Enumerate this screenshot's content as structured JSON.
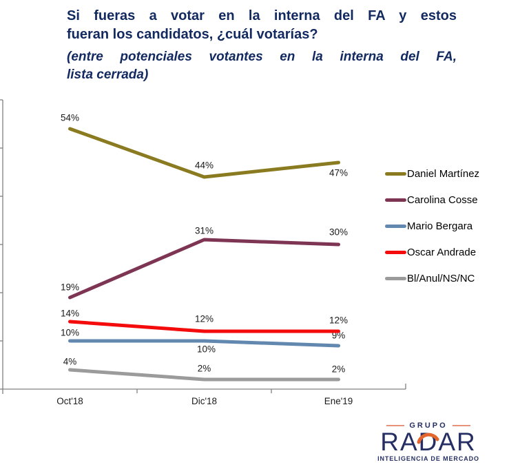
{
  "header": {
    "title_line1": "Si fueras a votar en la interna del FA y estos",
    "title_line2": "fueran los candidatos, ¿cuál votarías?",
    "subtitle_line1": "(entre potenciales votantes en la interna del FA,",
    "subtitle_line2": "lista cerrada)",
    "title_color": "#132A61"
  },
  "chart_data": {
    "type": "line",
    "title": "Si fueras a votar en la interna del FA y estos fueran los candidatos, ¿cuál votarías? (entre potenciales votantes en la interna del FA, lista cerrada)",
    "categories": [
      "Oct'18",
      "Dic'18",
      "Ene'19"
    ],
    "series": [
      {
        "name": "Daniel Martínez",
        "color": "#8A7B21",
        "values": [
          54,
          44,
          47
        ],
        "label_offsets": [
          [
            0,
            -16
          ],
          [
            0,
            -17
          ],
          [
            0,
            15
          ]
        ]
      },
      {
        "name": "Carolina Cosse",
        "color": "#7D3553",
        "values": [
          19,
          31,
          30
        ],
        "label_offsets": [
          [
            0,
            -15
          ],
          [
            0,
            -13
          ],
          [
            0,
            -18
          ]
        ]
      },
      {
        "name": "Mario Bergara",
        "color": "#6288B0",
        "values": [
          10,
          10,
          9
        ],
        "label_offsets": [
          [
            0,
            -12
          ],
          [
            3,
            12
          ],
          [
            0,
            -15
          ]
        ]
      },
      {
        "name": "Oscar Andrade",
        "color": "#F40B0B",
        "values": [
          14,
          12,
          12
        ],
        "label_offsets": [
          [
            0,
            -12
          ],
          [
            0,
            -18
          ],
          [
            0,
            -16
          ]
        ]
      },
      {
        "name": "Bl/Anul/NS/NC",
        "color": "#9B9B9B",
        "values": [
          4,
          2,
          2
        ],
        "label_offsets": [
          [
            0,
            -12
          ],
          [
            0,
            -16
          ],
          [
            0,
            -15
          ]
        ]
      }
    ],
    "ylim": [
      0,
      60
    ],
    "y_tick_step": 10,
    "y_tick_labels_visible": false,
    "grid": false,
    "data_labels": true,
    "label_format": "{v}%",
    "label_color": "#1A1A1A",
    "axis_color": "#808080",
    "category_label_color": "#1A1A1A",
    "legend_position": "right"
  },
  "logo": {
    "grupo": "GRUPO",
    "name": "RADAR",
    "tagline": "INTELIGENCIA DE MERCADO",
    "navy": "#252F63",
    "orange_dash": "#E9927A",
    "orange_arc": "#E2662D"
  }
}
